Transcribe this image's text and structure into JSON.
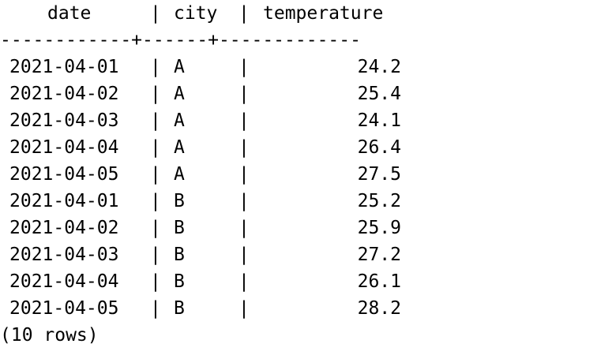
{
  "columns": [
    "date",
    "city",
    "temperature"
  ],
  "separator": "|",
  "divider": "------------+------+-------------",
  "rows": [
    {
      "date": "2021-04-01",
      "city": "A",
      "temperature": "24.2"
    },
    {
      "date": "2021-04-02",
      "city": "A",
      "temperature": "25.4"
    },
    {
      "date": "2021-04-03",
      "city": "A",
      "temperature": "24.1"
    },
    {
      "date": "2021-04-04",
      "city": "A",
      "temperature": "26.4"
    },
    {
      "date": "2021-04-05",
      "city": "A",
      "temperature": "27.5"
    },
    {
      "date": "2021-04-01",
      "city": "B",
      "temperature": "25.2"
    },
    {
      "date": "2021-04-02",
      "city": "B",
      "temperature": "25.9"
    },
    {
      "date": "2021-04-03",
      "city": "B",
      "temperature": "27.2"
    },
    {
      "date": "2021-04-04",
      "city": "B",
      "temperature": "26.1"
    },
    {
      "date": "2021-04-05",
      "city": "B",
      "temperature": "28.2"
    }
  ],
  "footer": "(10 rows)"
}
